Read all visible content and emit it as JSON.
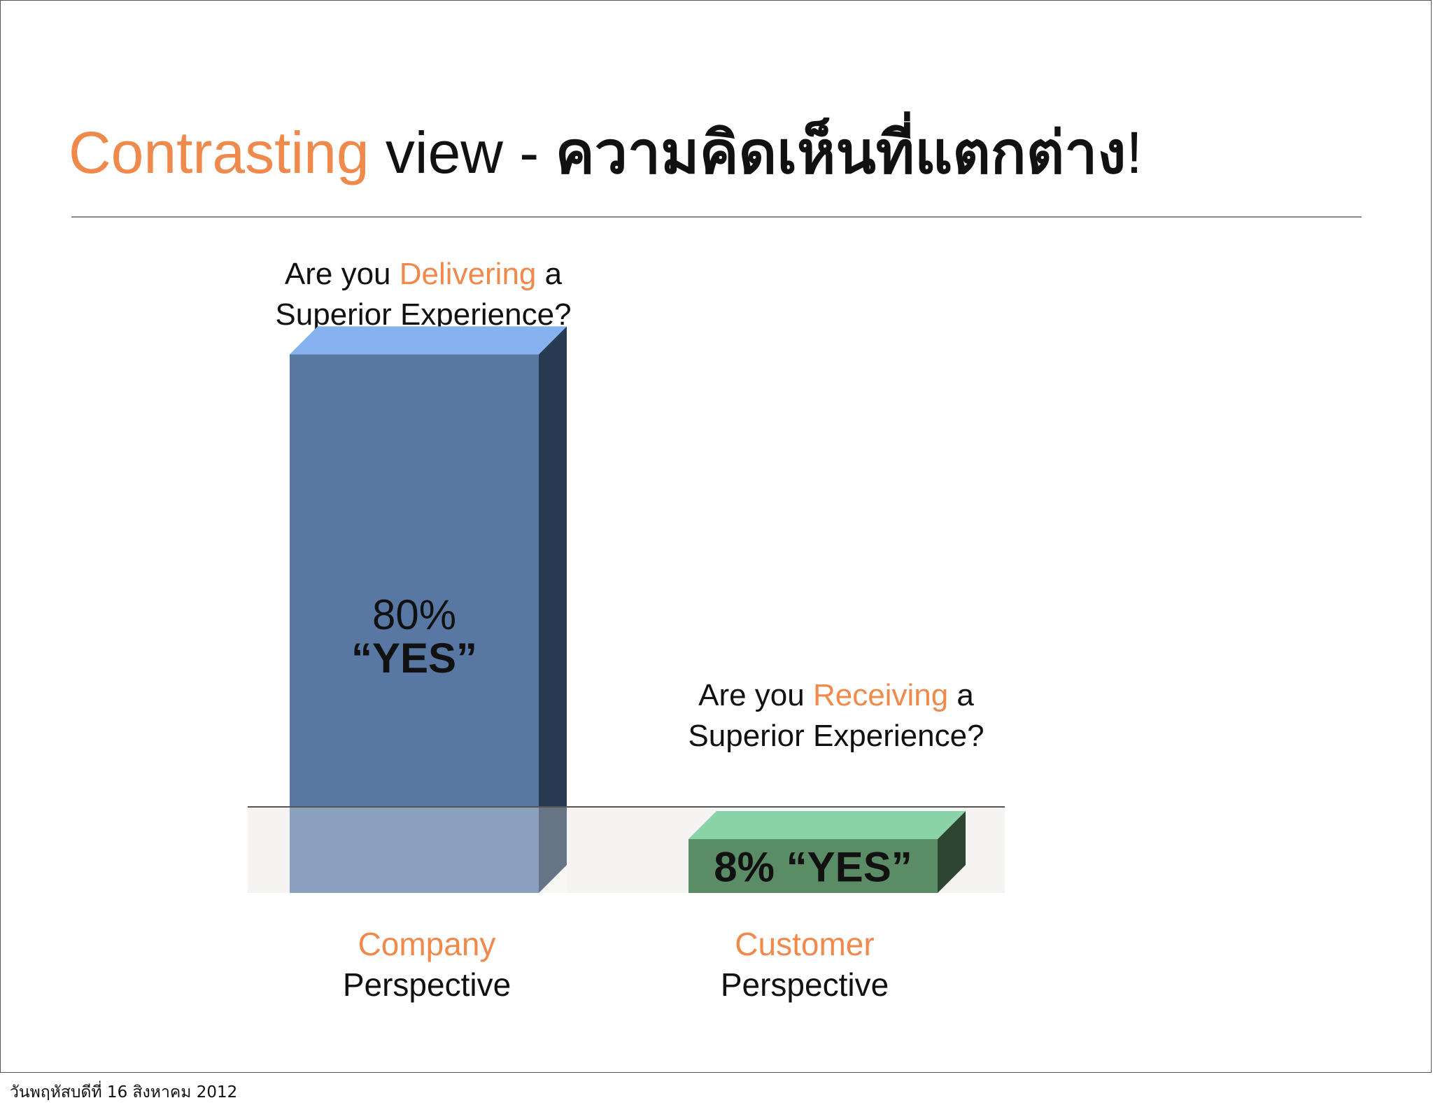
{
  "title": {
    "accent": "Contrasting",
    "plain": " view - ",
    "thai": "ความคิดเห็นที่แตกต่าง",
    "end": "!"
  },
  "questions": {
    "company": {
      "line1_pre": "Are you ",
      "line1_accent": "Delivering",
      "line1_post": " a",
      "line2": "Superior Experience?"
    },
    "customer": {
      "line1_pre": "Are you ",
      "line1_accent": "Receiving",
      "line1_post": " a",
      "line2": "Superior Experience?"
    }
  },
  "chart_data": {
    "type": "bar",
    "categories": [
      "Company Perspective",
      "Customer Perspective"
    ],
    "values": [
      80,
      8
    ],
    "value_labels": [
      [
        "80%",
        "“YES”"
      ],
      [
        "8% “YES”"
      ]
    ],
    "unit": "% YES",
    "colors": {
      "company_front": "#5878a3",
      "company_top": "#86b3f0",
      "company_side": "#283a52",
      "customer_front": "#5a8c66",
      "customer_top": "#8ad3a6",
      "customer_side": "#2d4632",
      "floor": "#f5f4f2",
      "baseline": "#555555"
    }
  },
  "perspectives": [
    {
      "accent": "Company",
      "plain": "Perspective"
    },
    {
      "accent": "Customer",
      "plain": "Perspective"
    }
  ],
  "footer": "วันพฤหัสบดีที่ 16 สิงหาคม  2012"
}
